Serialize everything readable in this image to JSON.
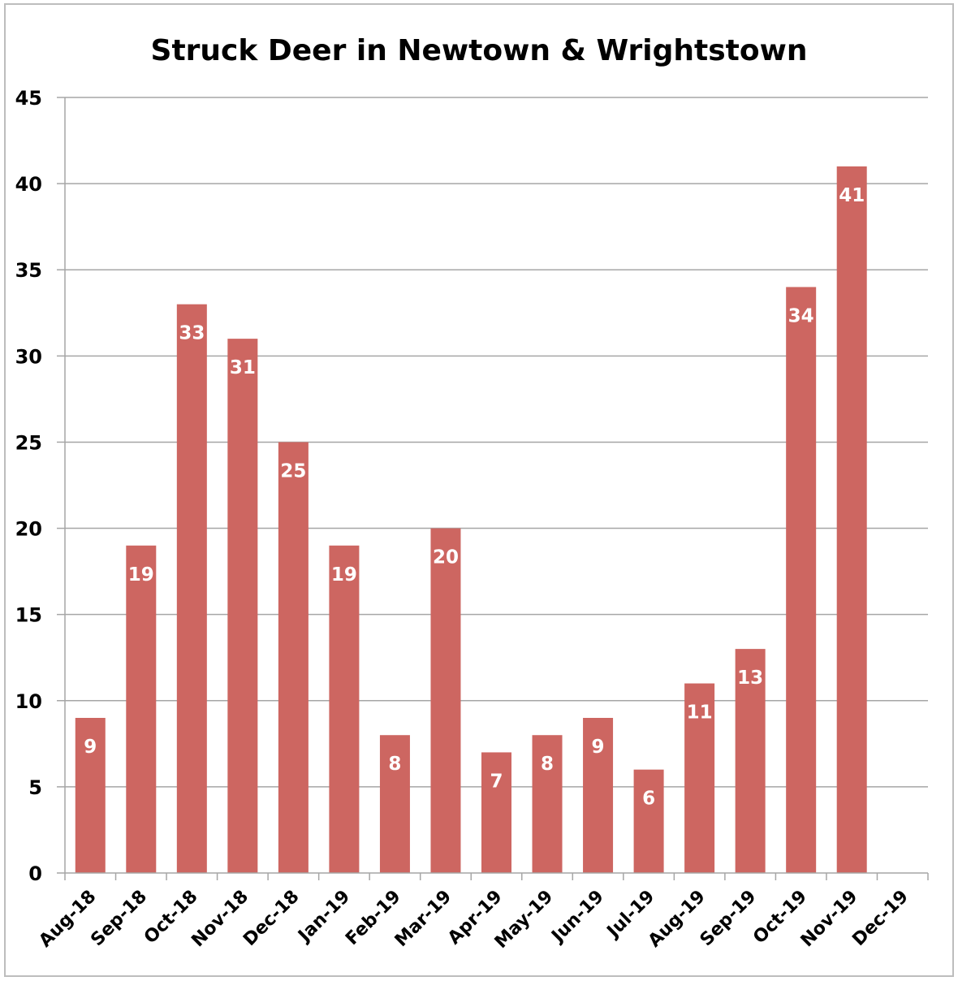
{
  "chart_data": {
    "type": "bar",
    "title": "Struck Deer in Newtown & Wrightstown",
    "xlabel": "",
    "ylabel": "",
    "ylim": [
      0,
      45
    ],
    "yticks": [
      0,
      5,
      10,
      15,
      20,
      25,
      30,
      35,
      40,
      45
    ],
    "grid": true,
    "legend": "none",
    "categories": [
      "Aug-18",
      "Sep-18",
      "Oct-18",
      "Nov-18",
      "Dec-18",
      "Jan-19",
      "Feb-19",
      "Mar-19",
      "Apr-19",
      "May-19",
      "Jun-19",
      "Jul-19",
      "Aug-19",
      "Sep-19",
      "Oct-19",
      "Nov-19",
      "Dec-19"
    ],
    "series": [
      {
        "name": "Struck Deer",
        "color": "#cd6661",
        "values": [
          9,
          19,
          33,
          31,
          25,
          19,
          8,
          20,
          7,
          8,
          9,
          6,
          11,
          13,
          34,
          41,
          null
        ]
      }
    ]
  }
}
